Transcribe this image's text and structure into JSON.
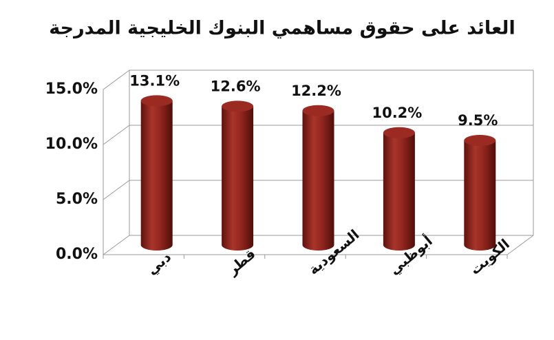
{
  "chart_data": {
    "type": "bar",
    "title": "العائد على حقوق مساهمي البنوك الخليجية المدرجة",
    "categories": [
      "دبي",
      "قطر",
      "السعودية",
      "أبوظبي",
      "الكويت"
    ],
    "values": [
      13.1,
      12.6,
      12.2,
      10.2,
      9.5
    ],
    "value_labels": [
      "13.1%",
      "12.6%",
      "12.2%",
      "10.2%",
      "9.5%"
    ],
    "color": "#9b2a22",
    "ylim": [
      0,
      15
    ],
    "yticks": [
      {
        "value": 0,
        "label": "0.0%"
      },
      {
        "value": 5,
        "label": "5.0%"
      },
      {
        "value": 10,
        "label": "10.0%"
      },
      {
        "value": 15,
        "label": "15.0%"
      }
    ],
    "grid": true
  }
}
